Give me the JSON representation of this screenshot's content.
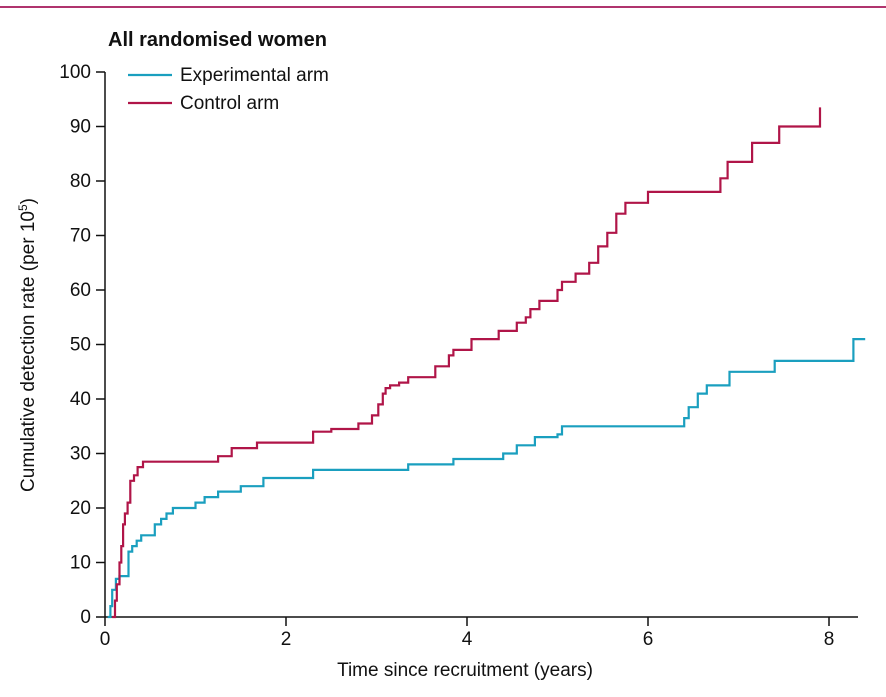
{
  "chart_data": {
    "type": "line",
    "title": "All randomised women",
    "xlabel": "Time since recruitment (years)",
    "ylabel": "Cumulative detection rate (per 10",
    "ylabel_superscript": "5",
    "ylabel_suffix": ")",
    "xlim": [
      0,
      8.4
    ],
    "ylim": [
      0,
      100
    ],
    "xticks": [
      0,
      2,
      4,
      6,
      8
    ],
    "yticks": [
      0,
      10,
      20,
      30,
      40,
      50,
      60,
      70,
      80,
      90,
      100
    ],
    "grid": false,
    "legend_position": "top-left",
    "series": [
      {
        "name": "Experimental arm",
        "color": "#1a9fbf",
        "x": [
          0.03,
          0.06,
          0.08,
          0.12,
          0.16,
          0.2,
          0.26,
          0.3,
          0.35,
          0.4,
          0.45,
          0.55,
          0.62,
          0.68,
          0.75,
          0.85,
          1.0,
          1.1,
          1.25,
          1.5,
          1.75,
          2.3,
          3.35,
          3.85,
          4.4,
          4.55,
          4.75,
          5.0,
          5.05,
          6.35,
          6.4,
          6.45,
          6.55,
          6.65,
          6.9,
          7.4,
          8.27,
          8.4
        ],
        "y": [
          0,
          2,
          5,
          7,
          7.5,
          7.5,
          12,
          13,
          14,
          15,
          15,
          17,
          18,
          19,
          20,
          20,
          21,
          22,
          23,
          24,
          25.5,
          27,
          28,
          29,
          30,
          31.5,
          33,
          33.5,
          35,
          35,
          36.5,
          38.5,
          41,
          42.5,
          45,
          47,
          51,
          51
        ]
      },
      {
        "name": "Control arm",
        "color": "#b01548",
        "x": [
          0.08,
          0.11,
          0.13,
          0.16,
          0.18,
          0.2,
          0.22,
          0.25,
          0.28,
          0.32,
          0.36,
          0.42,
          0.55,
          1.25,
          1.4,
          1.63,
          1.68,
          2.05,
          2.3,
          2.5,
          2.8,
          2.95,
          3.02,
          3.07,
          3.1,
          3.15,
          3.25,
          3.35,
          3.5,
          3.65,
          3.8,
          3.85,
          4.05,
          4.35,
          4.55,
          4.65,
          4.7,
          4.8,
          5.0,
          5.05,
          5.2,
          5.35,
          5.45,
          5.55,
          5.65,
          5.75,
          6.0,
          6.8,
          6.88,
          7.15,
          7.45,
          7.9
        ],
        "y": [
          0,
          3,
          6,
          10,
          13,
          17,
          19,
          21,
          25,
          26,
          27.5,
          28.5,
          28.5,
          29.5,
          31,
          31,
          32,
          32,
          34,
          34.5,
          35.5,
          37,
          39,
          41,
          42,
          42.5,
          43,
          44,
          44,
          46,
          48,
          49,
          51,
          52.5,
          54,
          55,
          56.5,
          58,
          60,
          61.5,
          63,
          65,
          68,
          70.5,
          74,
          76,
          78,
          80.5,
          83.5,
          87,
          90,
          93.5
        ]
      }
    ]
  }
}
